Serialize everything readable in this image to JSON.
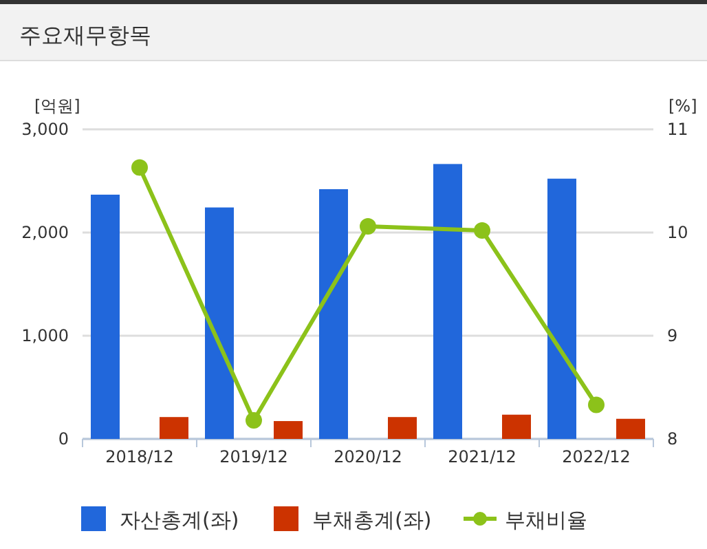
{
  "chart_data": {
    "type": "bar",
    "title": "주요재무항목",
    "ylabel": "[억원]",
    "y2label": "[%]",
    "categories": [
      "2018/12",
      "2019/12",
      "2020/12",
      "2021/12",
      "2022/12"
    ],
    "series": [
      {
        "name": "자산총계(좌)",
        "color": "#2167db",
        "values": [
          2367,
          2243,
          2420,
          2664,
          2522
        ]
      },
      {
        "name": "부채총계(좌)",
        "color": "#cc3300",
        "values": [
          212,
          173,
          212,
          235,
          195
        ]
      },
      {
        "name": "부채비율",
        "type": "line",
        "axis": "y2",
        "color": "#8cc21a",
        "marker": "circle",
        "values": [
          10.63,
          8.18,
          10.06,
          10.02,
          8.33
        ]
      }
    ],
    "ylim": [
      0,
      3000
    ],
    "yticks": [
      0,
      {
        "value": 1000,
        "label": "1,000"
      },
      {
        "value": 2000,
        "label": "2,000"
      },
      {
        "value": 3000,
        "label": "3,000"
      }
    ],
    "y2lim": [
      8,
      11
    ],
    "y2ticks": [
      8,
      9,
      10,
      11
    ],
    "grid": "y",
    "legend": "bottom"
  }
}
